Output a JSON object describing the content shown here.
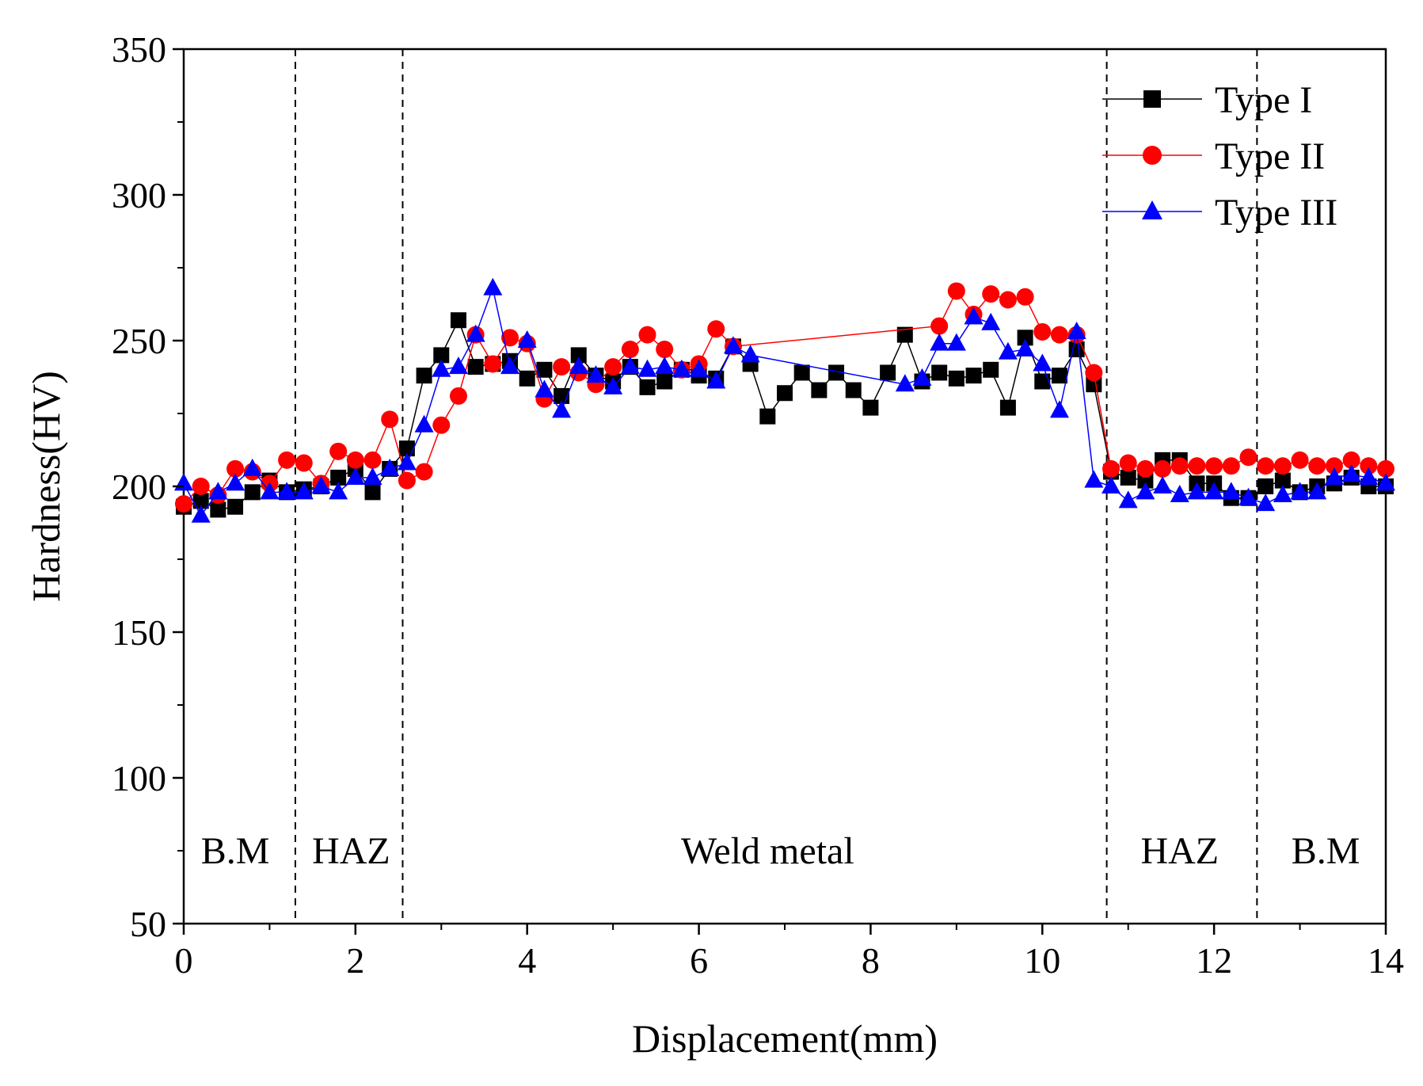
{
  "chart_data": {
    "type": "line",
    "title": "",
    "xlabel": "Displacement(mm)",
    "ylabel": "Hardness(HV)",
    "xlim": [
      0,
      14
    ],
    "ylim": [
      50,
      350
    ],
    "xticks": [
      0,
      2,
      4,
      6,
      8,
      10,
      12,
      14
    ],
    "yticks": [
      50,
      100,
      150,
      200,
      250,
      300,
      350
    ],
    "xtick_labels": [
      "0",
      "2",
      "4",
      "6",
      "8",
      "10",
      "12",
      "14"
    ],
    "ytick_labels": [
      "50",
      "100",
      "150",
      "200",
      "250",
      "300",
      "350"
    ],
    "legend_position": "top-right",
    "region_boundaries": [
      1.3,
      2.55,
      10.75,
      12.5
    ],
    "regions": [
      {
        "label": "B.M",
        "x": 0.6
      },
      {
        "label": "HAZ",
        "x": 1.95
      },
      {
        "label": "Weld metal",
        "x": 6.8
      },
      {
        "label": "HAZ",
        "x": 11.6
      },
      {
        "label": "B.M",
        "x": 13.3
      }
    ],
    "region_label_y": 75,
    "series": [
      {
        "name": "Type I",
        "color": "#000000",
        "marker": "square",
        "x": [
          0,
          0.2,
          0.4,
          0.6,
          0.8,
          1.0,
          1.2,
          1.4,
          1.6,
          1.8,
          2.0,
          2.2,
          2.4,
          2.6,
          2.8,
          3.0,
          3.2,
          3.4,
          3.6,
          3.8,
          4.0,
          4.2,
          4.4,
          4.6,
          4.8,
          5.0,
          5.2,
          5.4,
          5.6,
          5.8,
          6.0,
          6.2,
          6.4,
          6.6,
          6.8,
          7.0,
          7.2,
          7.4,
          7.6,
          7.8,
          8.0,
          8.2,
          8.4,
          8.6,
          8.8,
          9.0,
          9.2,
          9.4,
          9.6,
          9.8,
          10.0,
          10.2,
          10.4,
          10.6,
          10.8,
          11.0,
          11.2,
          11.4,
          11.6,
          11.8,
          12.0,
          12.2,
          12.4,
          12.6,
          12.8,
          13.0,
          13.2,
          13.4,
          13.6,
          13.8,
          14.0
        ],
        "y": [
          193,
          195,
          192,
          193,
          198,
          202,
          198,
          199,
          200,
          203,
          206,
          198,
          206,
          213,
          238,
          245,
          257,
          241,
          242,
          243,
          237,
          240,
          231,
          245,
          238,
          236,
          241,
          234,
          236,
          240,
          238,
          237,
          248,
          242,
          224,
          232,
          239,
          233,
          239,
          233,
          227,
          239,
          252,
          236,
          239,
          237,
          238,
          240,
          227,
          251,
          236,
          238,
          247,
          235,
          205,
          203,
          202,
          209,
          209,
          201,
          201,
          196,
          196,
          200,
          202,
          198,
          200,
          201,
          203,
          200,
          200
        ]
      },
      {
        "name": "Type II",
        "color": "#ff0000",
        "marker": "circle",
        "x": [
          0,
          0.2,
          0.4,
          0.6,
          0.8,
          1.0,
          1.2,
          1.4,
          1.6,
          1.8,
          2.0,
          2.2,
          2.4,
          2.6,
          2.8,
          3.0,
          3.2,
          3.4,
          3.6,
          3.8,
          4.0,
          4.2,
          4.4,
          4.6,
          4.8,
          5.0,
          5.2,
          5.4,
          5.6,
          5.8,
          6.0,
          6.2,
          6.4,
          8.8,
          9.0,
          9.2,
          9.4,
          9.6,
          9.8,
          10.0,
          10.2,
          10.4,
          10.6,
          10.8,
          11.0,
          11.2,
          11.4,
          11.6,
          11.8,
          12.0,
          12.2,
          12.4,
          12.6,
          12.8,
          13.0,
          13.2,
          13.4,
          13.6,
          13.8,
          14.0
        ],
        "y": [
          194,
          200,
          197,
          206,
          205,
          201,
          209,
          208,
          201,
          212,
          209,
          209,
          223,
          202,
          205,
          221,
          231,
          252,
          242,
          251,
          249,
          230,
          241,
          239,
          235,
          241,
          247,
          252,
          247,
          240,
          242,
          254,
          248,
          255,
          267,
          259,
          266,
          264,
          265,
          253,
          252,
          252,
          239,
          206,
          208,
          206,
          206,
          207,
          207,
          207,
          207,
          210,
          207,
          207,
          209,
          207,
          207,
          209,
          207,
          206
        ]
      },
      {
        "name": "Type III",
        "color": "#0000ff",
        "marker": "triangle",
        "x": [
          0,
          0.2,
          0.4,
          0.6,
          0.8,
          1.0,
          1.2,
          1.4,
          1.6,
          1.8,
          2.0,
          2.2,
          2.4,
          2.6,
          2.8,
          3.0,
          3.2,
          3.4,
          3.6,
          3.8,
          4.0,
          4.2,
          4.4,
          4.6,
          4.8,
          5.0,
          5.2,
          5.4,
          5.6,
          5.8,
          6.0,
          6.2,
          6.4,
          6.6,
          8.4,
          8.6,
          8.8,
          9.0,
          9.2,
          9.4,
          9.6,
          9.8,
          10.0,
          10.2,
          10.4,
          10.6,
          10.8,
          11.0,
          11.2,
          11.4,
          11.6,
          11.8,
          12.0,
          12.2,
          12.4,
          12.6,
          12.8,
          13.0,
          13.2,
          13.4,
          13.6,
          13.8,
          14.0
        ],
        "y": [
          201,
          190,
          198,
          201,
          206,
          198,
          198,
          198,
          200,
          198,
          203,
          203,
          206,
          208,
          221,
          240,
          241,
          252,
          268,
          241,
          250,
          233,
          226,
          241,
          238,
          234,
          241,
          240,
          241,
          240,
          240,
          236,
          248,
          245,
          235,
          237,
          249,
          249,
          258,
          256,
          246,
          247,
          242,
          226,
          253,
          202,
          200,
          195,
          198,
          200,
          197,
          198,
          198,
          198,
          196,
          194,
          197,
          198,
          198,
          203,
          204,
          203,
          201
        ]
      }
    ]
  }
}
